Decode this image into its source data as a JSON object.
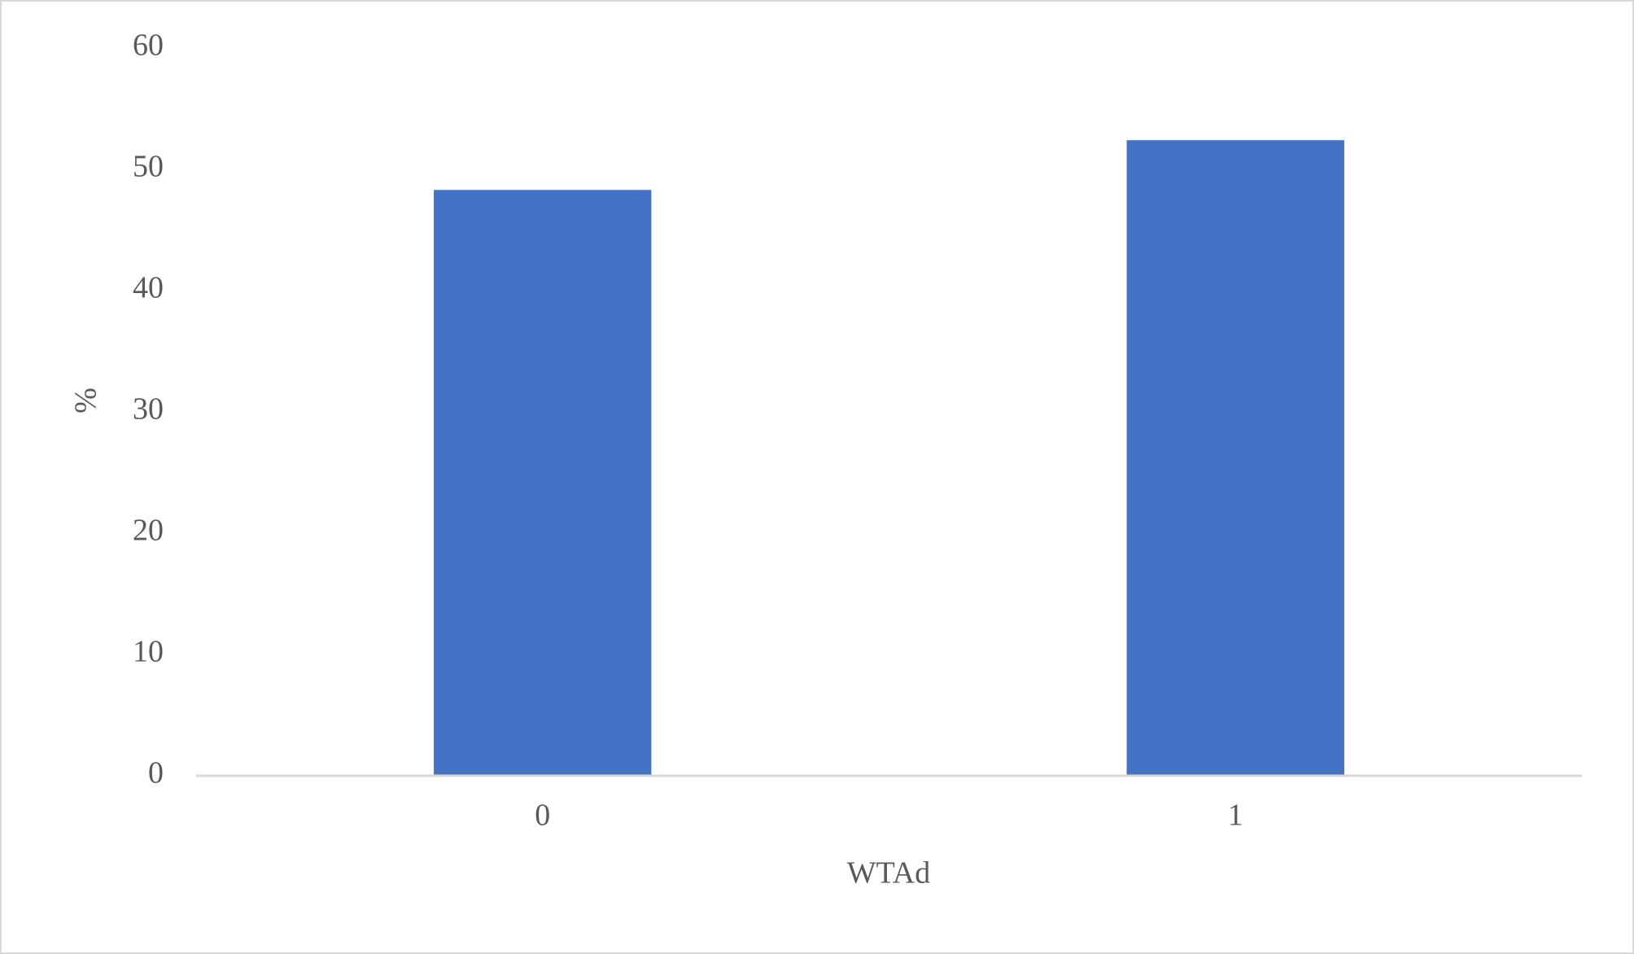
{
  "chart_data": {
    "type": "bar",
    "categories": [
      "0",
      "1"
    ],
    "values": [
      48.3,
      52.4
    ],
    "color": "#4472c4",
    "ylim": [
      0,
      60
    ],
    "yticks": [
      0,
      10,
      20,
      30,
      40,
      50,
      60
    ],
    "grid": false,
    "x_label": "WTAd",
    "y_label": "%"
  }
}
